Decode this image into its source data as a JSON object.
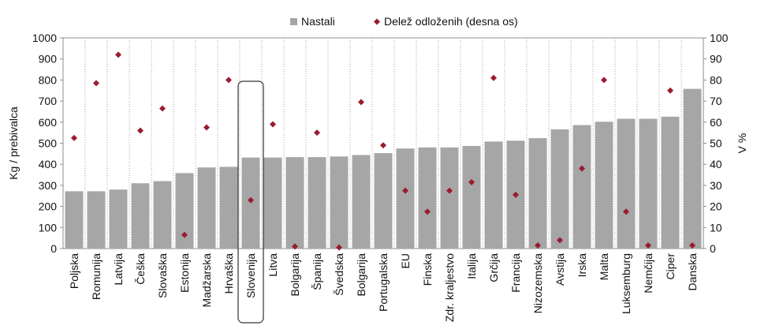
{
  "chart_data": {
    "type": "bar",
    "categories": [
      "Poljska",
      "Romunija",
      "Latvija",
      "Češka",
      "Slovaška",
      "Estonija",
      "Madžarska",
      "Hrvaška",
      "Slovenija",
      "Litva",
      "Bolgarija",
      "Španija",
      "Švedska",
      "Bolgarija",
      "Portugalska",
      "EU",
      "Finska",
      "Zdr. kraljestvo",
      "Italija",
      "Grčija",
      "Francija",
      "Nizozemska",
      "Avstija",
      "Irska",
      "Malta",
      "Luksemburg",
      "Nemčija",
      "Ciper",
      "Danska"
    ],
    "series": [
      {
        "name": "Nastali",
        "type": "bar",
        "axis": "left",
        "color": "#a6a6a6",
        "values": [
          272,
          272,
          280,
          310,
          320,
          358,
          385,
          388,
          432,
          432,
          434,
          434,
          437,
          444,
          453,
          475,
          480,
          480,
          487,
          508,
          512,
          524,
          566,
          586,
          602,
          616,
          616,
          626,
          758
        ]
      },
      {
        "name": "Delež odloženih (desna os)",
        "type": "scatter",
        "marker": "diamond",
        "axis": "right",
        "color": "#9b1b30",
        "values": [
          52.5,
          78.5,
          92,
          56,
          66.5,
          6.5,
          57.5,
          80,
          23,
          59,
          1,
          55,
          0.5,
          69.5,
          49,
          27.5,
          17.5,
          27.5,
          31.5,
          81,
          25.5,
          1.5,
          4,
          38,
          80,
          17.5,
          1.5,
          75,
          1.5
        ]
      }
    ],
    "ylabel": "Kg / prebivalca",
    "ylim": [
      0,
      1000
    ],
    "yticks": [
      0,
      100,
      200,
      300,
      400,
      500,
      600,
      700,
      800,
      900,
      1000
    ],
    "y2label": "V %",
    "y2lim": [
      0,
      100
    ],
    "y2ticks": [
      0,
      10,
      20,
      30,
      40,
      50,
      60,
      70,
      80,
      90,
      100
    ],
    "grid": "vertical dotted",
    "legend_position": "top",
    "highlight_category": "Slovenija"
  }
}
